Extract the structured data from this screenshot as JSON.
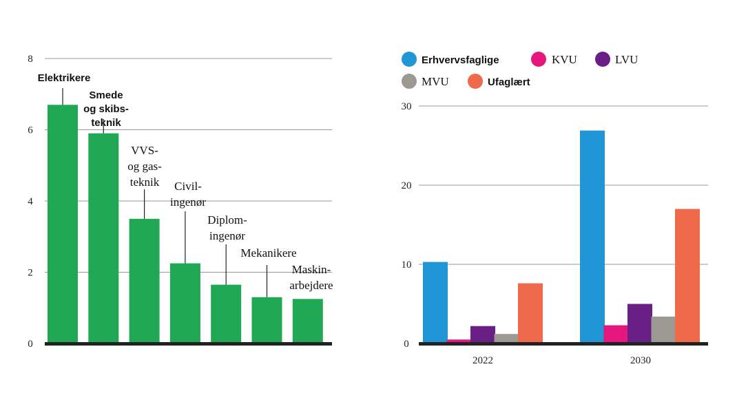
{
  "chart_data": [
    {
      "type": "bar",
      "title": "",
      "xlabel": "",
      "ylabel": "",
      "ylim": [
        0,
        8
      ],
      "yticks": [
        "0",
        "2",
        "4",
        "6",
        "8"
      ],
      "grid": true,
      "color": "#20a854",
      "categories": [
        {
          "lines": [
            "Elektrikere"
          ],
          "bold": true
        },
        {
          "lines": [
            "Smede",
            "og skibs-",
            "teknik"
          ],
          "bold": true
        },
        {
          "lines": [
            "VVS-",
            "og gas-",
            "teknik"
          ],
          "bold": false
        },
        {
          "lines": [
            "Civil-",
            "ingenør"
          ],
          "bold": false
        },
        {
          "lines": [
            "Diplom-",
            "ingenør"
          ],
          "bold": false
        },
        {
          "lines": [
            "Mekanikere"
          ],
          "bold": false
        },
        {
          "lines": [
            "Maskin-",
            "arbejdere"
          ],
          "bold": false
        }
      ],
      "values": [
        6.7,
        5.9,
        3.5,
        2.25,
        1.65,
        1.3,
        1.25
      ]
    },
    {
      "type": "bar",
      "title": "",
      "xlabel": "",
      "ylabel": "",
      "ylim": [
        0,
        30
      ],
      "yticks": [
        "0",
        "10",
        "20",
        "30"
      ],
      "grid": true,
      "legend_position": "top",
      "categories": [
        "2022",
        "2030"
      ],
      "series": [
        {
          "name": "Erhvervsfaglige",
          "color": "#2196d6",
          "bold": true,
          "values": [
            10.3,
            26.9
          ]
        },
        {
          "name": "KVU",
          "color": "#e5177e",
          "bold": false,
          "values": [
            0.5,
            2.3
          ]
        },
        {
          "name": "LVU",
          "color": "#6a1f86",
          "bold": false,
          "values": [
            2.2,
            5.0
          ]
        },
        {
          "name": "MVU",
          "color": "#9c9892",
          "bold": false,
          "values": [
            1.2,
            3.4
          ]
        },
        {
          "name": "Ufaglært",
          "color": "#ee6a4a",
          "bold": true,
          "values": [
            7.6,
            17.0
          ]
        }
      ]
    }
  ]
}
